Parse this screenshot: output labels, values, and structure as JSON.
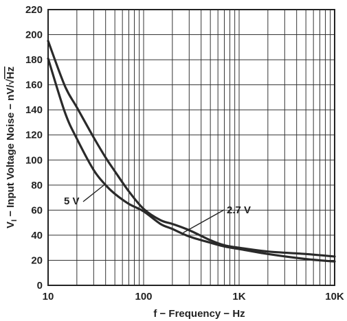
{
  "chart_data": {
    "type": "line",
    "title": "",
    "xlabel": "f − Frequency − Hz",
    "ylabel": {
      "v": "V",
      "sub": "I",
      "rest": " − Input Voltage Noise − nV/",
      "root": "√",
      "unit": "Hz"
    },
    "xscale": "log",
    "xlim": [
      10,
      10000
    ],
    "ylim": [
      0,
      220
    ],
    "x_ticks": [
      {
        "value": 10,
        "label": "10"
      },
      {
        "value": 100,
        "label": "100"
      },
      {
        "value": 1000,
        "label": "1K"
      },
      {
        "value": 10000,
        "label": "10K"
      }
    ],
    "y_ticks": [
      0,
      20,
      40,
      60,
      80,
      100,
      120,
      140,
      160,
      180,
      200,
      220
    ],
    "grid": true,
    "series": [
      {
        "name": "5 V",
        "x": [
          10,
          15,
          20,
          30,
          40,
          50,
          70,
          100,
          150,
          200,
          300,
          500,
          700,
          1000,
          2000,
          5000,
          10000
        ],
        "y": [
          181,
          138,
          117,
          92,
          80,
          73,
          65,
          59,
          49,
          45,
          39,
          34,
          31,
          29,
          25,
          21,
          19
        ]
      },
      {
        "name": "2.7 V",
        "x": [
          10,
          15,
          20,
          30,
          40,
          50,
          70,
          100,
          150,
          200,
          300,
          500,
          700,
          1000,
          2000,
          5000,
          10000
        ],
        "y": [
          195,
          159,
          142,
          118,
          102,
          91,
          75,
          61,
          52,
          49,
          44,
          36,
          32,
          30,
          27,
          25,
          23
        ]
      }
    ],
    "annotations": [
      {
        "text": "5 V",
        "series": "5 V"
      },
      {
        "text": "2.7 V",
        "series": "2.7 V"
      }
    ]
  }
}
